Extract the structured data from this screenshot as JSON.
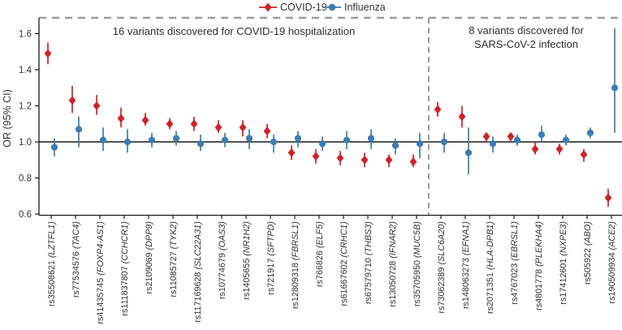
{
  "chart_data": {
    "type": "scatter",
    "subtype": "forest-plot-errorbar",
    "ylabel": "OR (95% CI)",
    "ylim": [
      0.6,
      1.69
    ],
    "yticks": [
      0.6,
      0.8,
      1.0,
      1.2,
      1.4,
      1.6
    ],
    "reference_line": 1.0,
    "grid": false,
    "legend_position": "top-center",
    "legend": [
      {
        "name": "COVID-19",
        "color": "#ce2227",
        "marker": "diamond"
      },
      {
        "name": "Influenza",
        "color": "#3c7cb4",
        "marker": "circle"
      }
    ],
    "sections": [
      {
        "label": "16 variants discovered for COVID-19 hospitalization",
        "variant_count": 16
      },
      {
        "label": "8 variants discovered for SARS-CoV-2 infection",
        "label_lines": [
          "8 variants discovered for",
          "SARS-CoV-2 infection"
        ],
        "variant_count": 8
      }
    ],
    "series_names": [
      "COVID-19",
      "Influenza"
    ],
    "variants": [
      {
        "rsid": "rs35508621",
        "gene": "LZTFL1",
        "section": 0,
        "covid": {
          "or": 1.49,
          "lo": 1.43,
          "hi": 1.55
        },
        "influenza": {
          "or": 0.97,
          "lo": 0.92,
          "hi": 1.02
        }
      },
      {
        "rsid": "rs77534576",
        "gene": "TAC4",
        "section": 0,
        "covid": {
          "or": 1.23,
          "lo": 1.16,
          "hi": 1.31
        },
        "influenza": {
          "or": 1.07,
          "lo": 0.97,
          "hi": 1.14
        }
      },
      {
        "rsid": "rs41435745",
        "gene": "FOXP4-AS1",
        "section": 0,
        "covid": {
          "or": 1.2,
          "lo": 1.15,
          "hi": 1.26
        },
        "influenza": {
          "or": 1.01,
          "lo": 0.95,
          "hi": 1.08
        }
      },
      {
        "rsid": "rs111837807",
        "gene": "CCHCR1",
        "section": 0,
        "covid": {
          "or": 1.13,
          "lo": 1.08,
          "hi": 1.19
        },
        "influenza": {
          "or": 1.0,
          "lo": 0.94,
          "hi": 1.07
        }
      },
      {
        "rsid": "rs2109069",
        "gene": "DPP9",
        "section": 0,
        "covid": {
          "or": 1.12,
          "lo": 1.09,
          "hi": 1.16
        },
        "influenza": {
          "or": 1.01,
          "lo": 0.97,
          "hi": 1.05
        }
      },
      {
        "rsid": "rs11085727",
        "gene": "TYK2",
        "section": 0,
        "covid": {
          "or": 1.1,
          "lo": 1.07,
          "hi": 1.13
        },
        "influenza": {
          "or": 1.02,
          "lo": 0.98,
          "hi": 1.06
        }
      },
      {
        "rsid": "rs117169628",
        "gene": "SLC22A31",
        "section": 0,
        "covid": {
          "or": 1.1,
          "lo": 1.06,
          "hi": 1.14
        },
        "influenza": {
          "or": 0.99,
          "lo": 0.95,
          "hi": 1.04
        }
      },
      {
        "rsid": "rs10774679",
        "gene": "OAS3",
        "section": 0,
        "covid": {
          "or": 1.08,
          "lo": 1.05,
          "hi": 1.12
        },
        "influenza": {
          "or": 1.01,
          "lo": 0.97,
          "hi": 1.05
        }
      },
      {
        "rsid": "rs1405655",
        "gene": "NR1H2",
        "section": 0,
        "covid": {
          "or": 1.08,
          "lo": 1.03,
          "hi": 1.12
        },
        "influenza": {
          "or": 1.02,
          "lo": 0.96,
          "hi": 1.07
        }
      },
      {
        "rsid": "rs721917",
        "gene": "SFTPD",
        "section": 0,
        "covid": {
          "or": 1.06,
          "lo": 1.02,
          "hi": 1.1
        },
        "influenza": {
          "or": 1.0,
          "lo": 0.94,
          "hi": 1.04
        }
      },
      {
        "rsid": "rs12809318",
        "gene": "FBRSL1",
        "section": 0,
        "covid": {
          "or": 0.94,
          "lo": 0.9,
          "hi": 0.98
        },
        "influenza": {
          "or": 1.02,
          "lo": 0.97,
          "hi": 1.06
        }
      },
      {
        "rsid": "rs766826",
        "gene": "ELF5",
        "section": 0,
        "covid": {
          "or": 0.92,
          "lo": 0.88,
          "hi": 0.96
        },
        "influenza": {
          "or": 0.99,
          "lo": 0.95,
          "hi": 1.03
        }
      },
      {
        "rsid": "rs61667602",
        "gene": "CRHC1",
        "section": 0,
        "covid": {
          "or": 0.91,
          "lo": 0.87,
          "hi": 0.95
        },
        "influenza": {
          "or": 1.01,
          "lo": 0.96,
          "hi": 1.06
        }
      },
      {
        "rsid": "rs67579710",
        "gene": "THBS3",
        "section": 0,
        "covid": {
          "or": 0.9,
          "lo": 0.86,
          "hi": 0.94
        },
        "influenza": {
          "or": 1.02,
          "lo": 0.96,
          "hi": 1.07
        }
      },
      {
        "rsid": "rs13050728",
        "gene": "IFNAR2",
        "section": 0,
        "covid": {
          "or": 0.9,
          "lo": 0.86,
          "hi": 0.93
        },
        "influenza": {
          "or": 0.98,
          "lo": 0.93,
          "hi": 1.02
        }
      },
      {
        "rsid": "rs35705950",
        "gene": "MUC5B",
        "section": 0,
        "covid": {
          "or": 0.89,
          "lo": 0.86,
          "hi": 0.93
        },
        "influenza": {
          "or": 0.99,
          "lo": 0.91,
          "hi": 1.05
        }
      },
      {
        "rsid": "rs73062389",
        "gene": "SLC6A20",
        "section": 1,
        "covid": {
          "or": 1.18,
          "lo": 1.14,
          "hi": 1.22
        },
        "influenza": {
          "or": 1.0,
          "lo": 0.94,
          "hi": 1.05
        }
      },
      {
        "rsid": "rs148063273",
        "gene": "EFNA1",
        "section": 1,
        "covid": {
          "or": 1.14,
          "lo": 1.08,
          "hi": 1.2
        },
        "influenza": {
          "or": 0.94,
          "lo": 0.82,
          "hi": 1.08
        }
      },
      {
        "rsid": "rs2071351",
        "gene": "HLA-DPB1",
        "section": 1,
        "covid": {
          "or": 1.03,
          "lo": 1.0,
          "hi": 1.05
        },
        "influenza": {
          "or": 0.99,
          "lo": 0.94,
          "hi": 1.03
        }
      },
      {
        "rsid": "rs4767023",
        "gene": "EBRSL1",
        "section": 1,
        "covid": {
          "or": 1.03,
          "lo": 1.0,
          "hi": 1.05
        },
        "influenza": {
          "or": 1.01,
          "lo": 0.98,
          "hi": 1.04
        }
      },
      {
        "rsid": "rs4801778",
        "gene": "PLEKHA4",
        "section": 1,
        "covid": {
          "or": 0.96,
          "lo": 0.93,
          "hi": 1.0
        },
        "influenza": {
          "or": 1.04,
          "lo": 1.0,
          "hi": 1.09
        }
      },
      {
        "rsid": "rs17412601",
        "gene": "NXPE3",
        "section": 1,
        "covid": {
          "or": 0.96,
          "lo": 0.93,
          "hi": 0.99
        },
        "influenza": {
          "or": 1.01,
          "lo": 0.98,
          "hi": 1.04
        }
      },
      {
        "rsid": "rs505922",
        "gene": "ABO",
        "section": 1,
        "covid": {
          "or": 0.93,
          "lo": 0.89,
          "hi": 0.96
        },
        "influenza": {
          "or": 1.05,
          "lo": 1.02,
          "hi": 1.08
        }
      },
      {
        "rsid": "rs190509934",
        "gene": "ACE2",
        "section": 1,
        "covid": {
          "or": 0.69,
          "lo": 0.64,
          "hi": 0.74
        },
        "influenza": {
          "or": 1.3,
          "lo": 1.05,
          "hi": 1.63
        }
      }
    ],
    "colors": {
      "axis": "#1a1a1a",
      "reference_line": "#1a1a1a",
      "dashed_annotation": "#9c9c9c",
      "text": "#333333"
    }
  }
}
